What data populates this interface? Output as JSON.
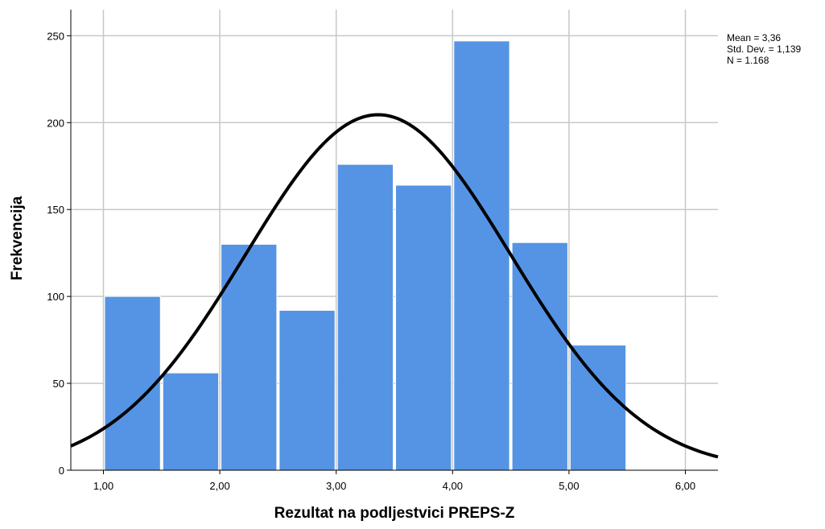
{
  "chart_data": {
    "type": "bar",
    "subtype": "histogram",
    "title": "",
    "xlabel": "Rezultat na podljestvici PREPS-Z",
    "ylabel": "Frekvencija",
    "xlim": [
      0.72,
      6.28
    ],
    "ylim": [
      0,
      265
    ],
    "x_ticks": [
      1,
      2,
      3,
      4,
      5,
      6
    ],
    "x_tick_labels": [
      "1,00",
      "2,00",
      "3,00",
      "4,00",
      "5,00",
      "6,00"
    ],
    "y_ticks": [
      0,
      50,
      100,
      150,
      200,
      250
    ],
    "y_tick_labels": [
      "0",
      "50",
      "100",
      "150",
      "200",
      "250"
    ],
    "grid": true,
    "bar_color": "#5594e4",
    "bins": [
      {
        "start": 1.0,
        "end": 1.5,
        "count": 100
      },
      {
        "start": 1.5,
        "end": 2.0,
        "count": 56
      },
      {
        "start": 2.0,
        "end": 2.5,
        "count": 130
      },
      {
        "start": 2.5,
        "end": 3.0,
        "count": 92
      },
      {
        "start": 3.0,
        "end": 3.5,
        "count": 176
      },
      {
        "start": 3.5,
        "end": 4.0,
        "count": 164
      },
      {
        "start": 4.0,
        "end": 4.5,
        "count": 247
      },
      {
        "start": 4.5,
        "end": 5.0,
        "count": 131
      },
      {
        "start": 5.0,
        "end": 5.5,
        "count": 72
      }
    ],
    "normal_curve": {
      "mean": 3.36,
      "std_dev": 1.139,
      "n": 1168,
      "bin_width": 0.5,
      "color": "#000000"
    },
    "stats_box": {
      "mean_label": "Mean = 3,36",
      "std_label": "Std. Dev. = 1,139",
      "n_label": "N = 1.168"
    }
  }
}
